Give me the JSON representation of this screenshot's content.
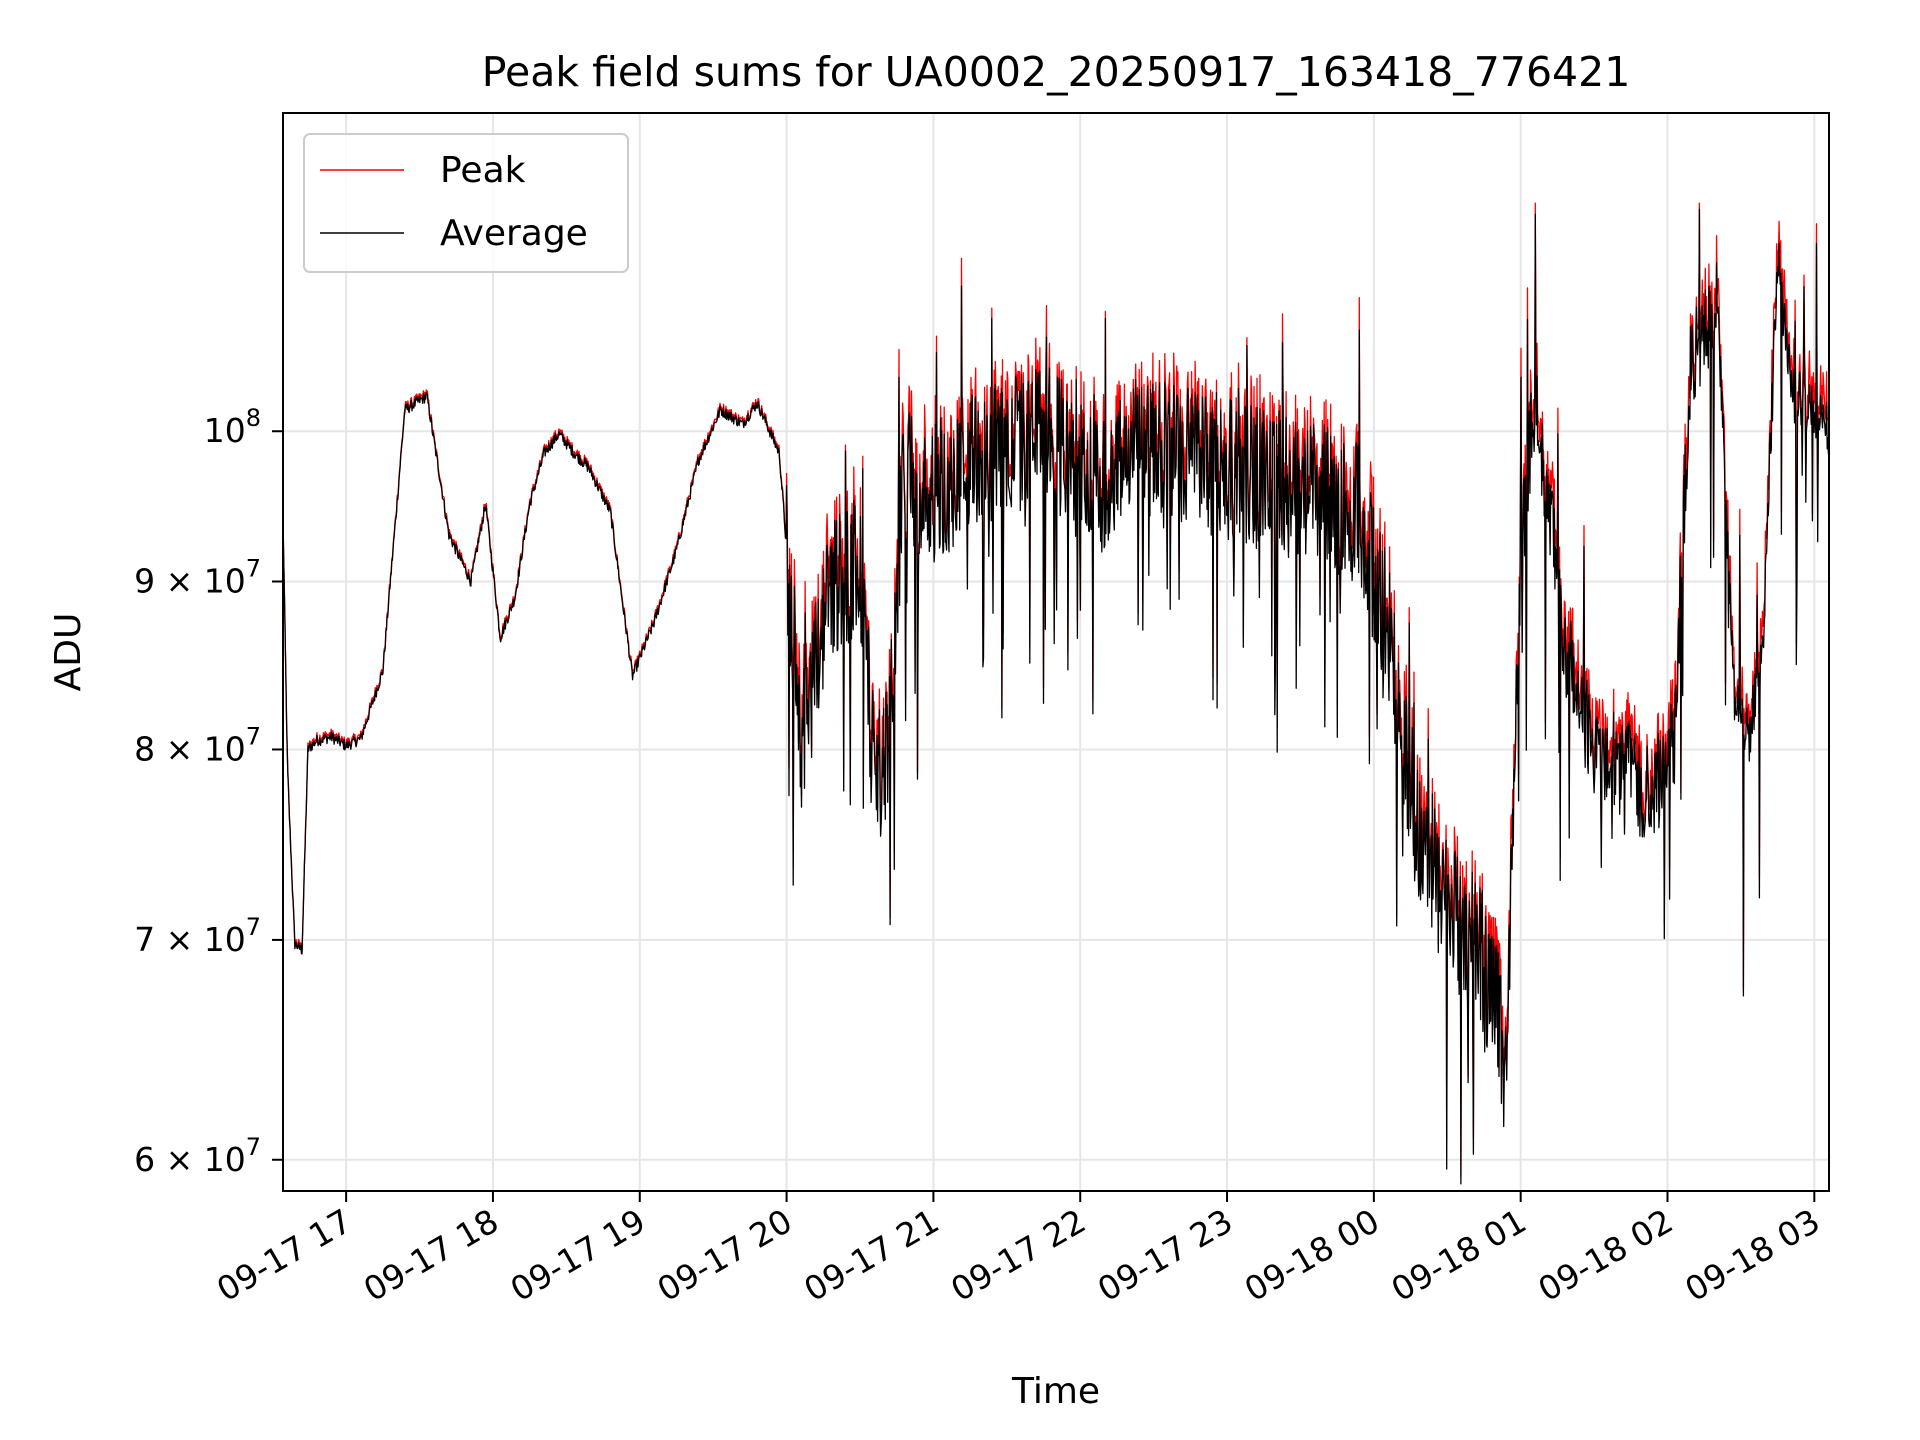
{
  "chart_data": {
    "type": "line",
    "title": "Peak field sums for UA0002_20250917_163418_776421",
    "xlabel": "Time",
    "ylabel": "ADU",
    "yscale": "log",
    "ylim": [
      58700000,
      125000000
    ],
    "xlim_hours": [
      16.57,
      27.1
    ],
    "grid": true,
    "legend_location": "upper left",
    "x_ticks": [
      {
        "hour": 17,
        "label": "09-17 17"
      },
      {
        "hour": 18,
        "label": "09-17 18"
      },
      {
        "hour": 19,
        "label": "09-17 19"
      },
      {
        "hour": 20,
        "label": "09-17 20"
      },
      {
        "hour": 21,
        "label": "09-17 21"
      },
      {
        "hour": 22,
        "label": "09-17 22"
      },
      {
        "hour": 23,
        "label": "09-17 23"
      },
      {
        "hour": 24,
        "label": "09-18 00"
      },
      {
        "hour": 25,
        "label": "09-18 01"
      },
      {
        "hour": 26,
        "label": "09-18 02"
      },
      {
        "hour": 27,
        "label": "09-18 03"
      }
    ],
    "y_ticks": [
      {
        "value": 60000000,
        "mantissa": "6",
        "exponent": "7"
      },
      {
        "value": 70000000,
        "mantissa": "7",
        "exponent": "7"
      },
      {
        "value": 80000000,
        "mantissa": "8",
        "exponent": "7"
      },
      {
        "value": 90000000,
        "mantissa": "9",
        "exponent": "7"
      },
      {
        "value": 100000000,
        "mantissa": "",
        "exponent": "8"
      }
    ],
    "series": [
      {
        "name": "Peak",
        "color": "#ff0000"
      },
      {
        "name": "Average",
        "color": "#000000"
      }
    ],
    "average_keypoints": {
      "hours": [
        16.57,
        16.6,
        16.65,
        16.7,
        16.74,
        16.8,
        16.9,
        17.0,
        17.1,
        17.25,
        17.4,
        17.55,
        17.7,
        17.85,
        17.95,
        18.05,
        18.15,
        18.25,
        18.35,
        18.45,
        18.55,
        18.65,
        18.8,
        18.95,
        19.1,
        19.25,
        19.4,
        19.55,
        19.7,
        19.8,
        19.95,
        20.1,
        20.3,
        20.5,
        20.6,
        20.7,
        20.8,
        20.9,
        21.2,
        21.5,
        21.8,
        22.1,
        22.4,
        22.7,
        23.0,
        23.3,
        23.6,
        23.9,
        24.1,
        24.3,
        24.5,
        24.7,
        24.85,
        24.9,
        25.0,
        25.1,
        25.3,
        25.5,
        25.7,
        25.85,
        25.95,
        26.05,
        26.15,
        26.25,
        26.35,
        26.45,
        26.55,
        26.65,
        26.75,
        26.85,
        26.95,
        27.05,
        27.1
      ],
      "values": [
        94000000,
        79000000,
        69800000,
        69500000,
        80000000,
        80500000,
        80700000,
        80200000,
        80600000,
        84500000,
        101500000,
        102500000,
        93000000,
        90000000,
        95000000,
        86500000,
        89000000,
        95000000,
        98500000,
        99800000,
        98500000,
        97500000,
        94500000,
        84200000,
        87500000,
        92000000,
        98000000,
        101500000,
        100500000,
        102000000,
        98500000,
        80500000,
        90000000,
        91000000,
        78000000,
        81000000,
        98000000,
        95000000,
        97500000,
        99000000,
        100000000,
        96000000,
        99000000,
        98500000,
        97500000,
        97000000,
        96000000,
        94500000,
        87000000,
        75500000,
        71500000,
        70000000,
        66500000,
        63800000,
        92000000,
        103000000,
        86000000,
        80000000,
        79500000,
        77500000,
        78500000,
        80500000,
        104000000,
        108000000,
        107000000,
        83500000,
        80500000,
        86000000,
        113000000,
        102500000,
        102000000,
        101000000,
        100000000
      ]
    }
  }
}
